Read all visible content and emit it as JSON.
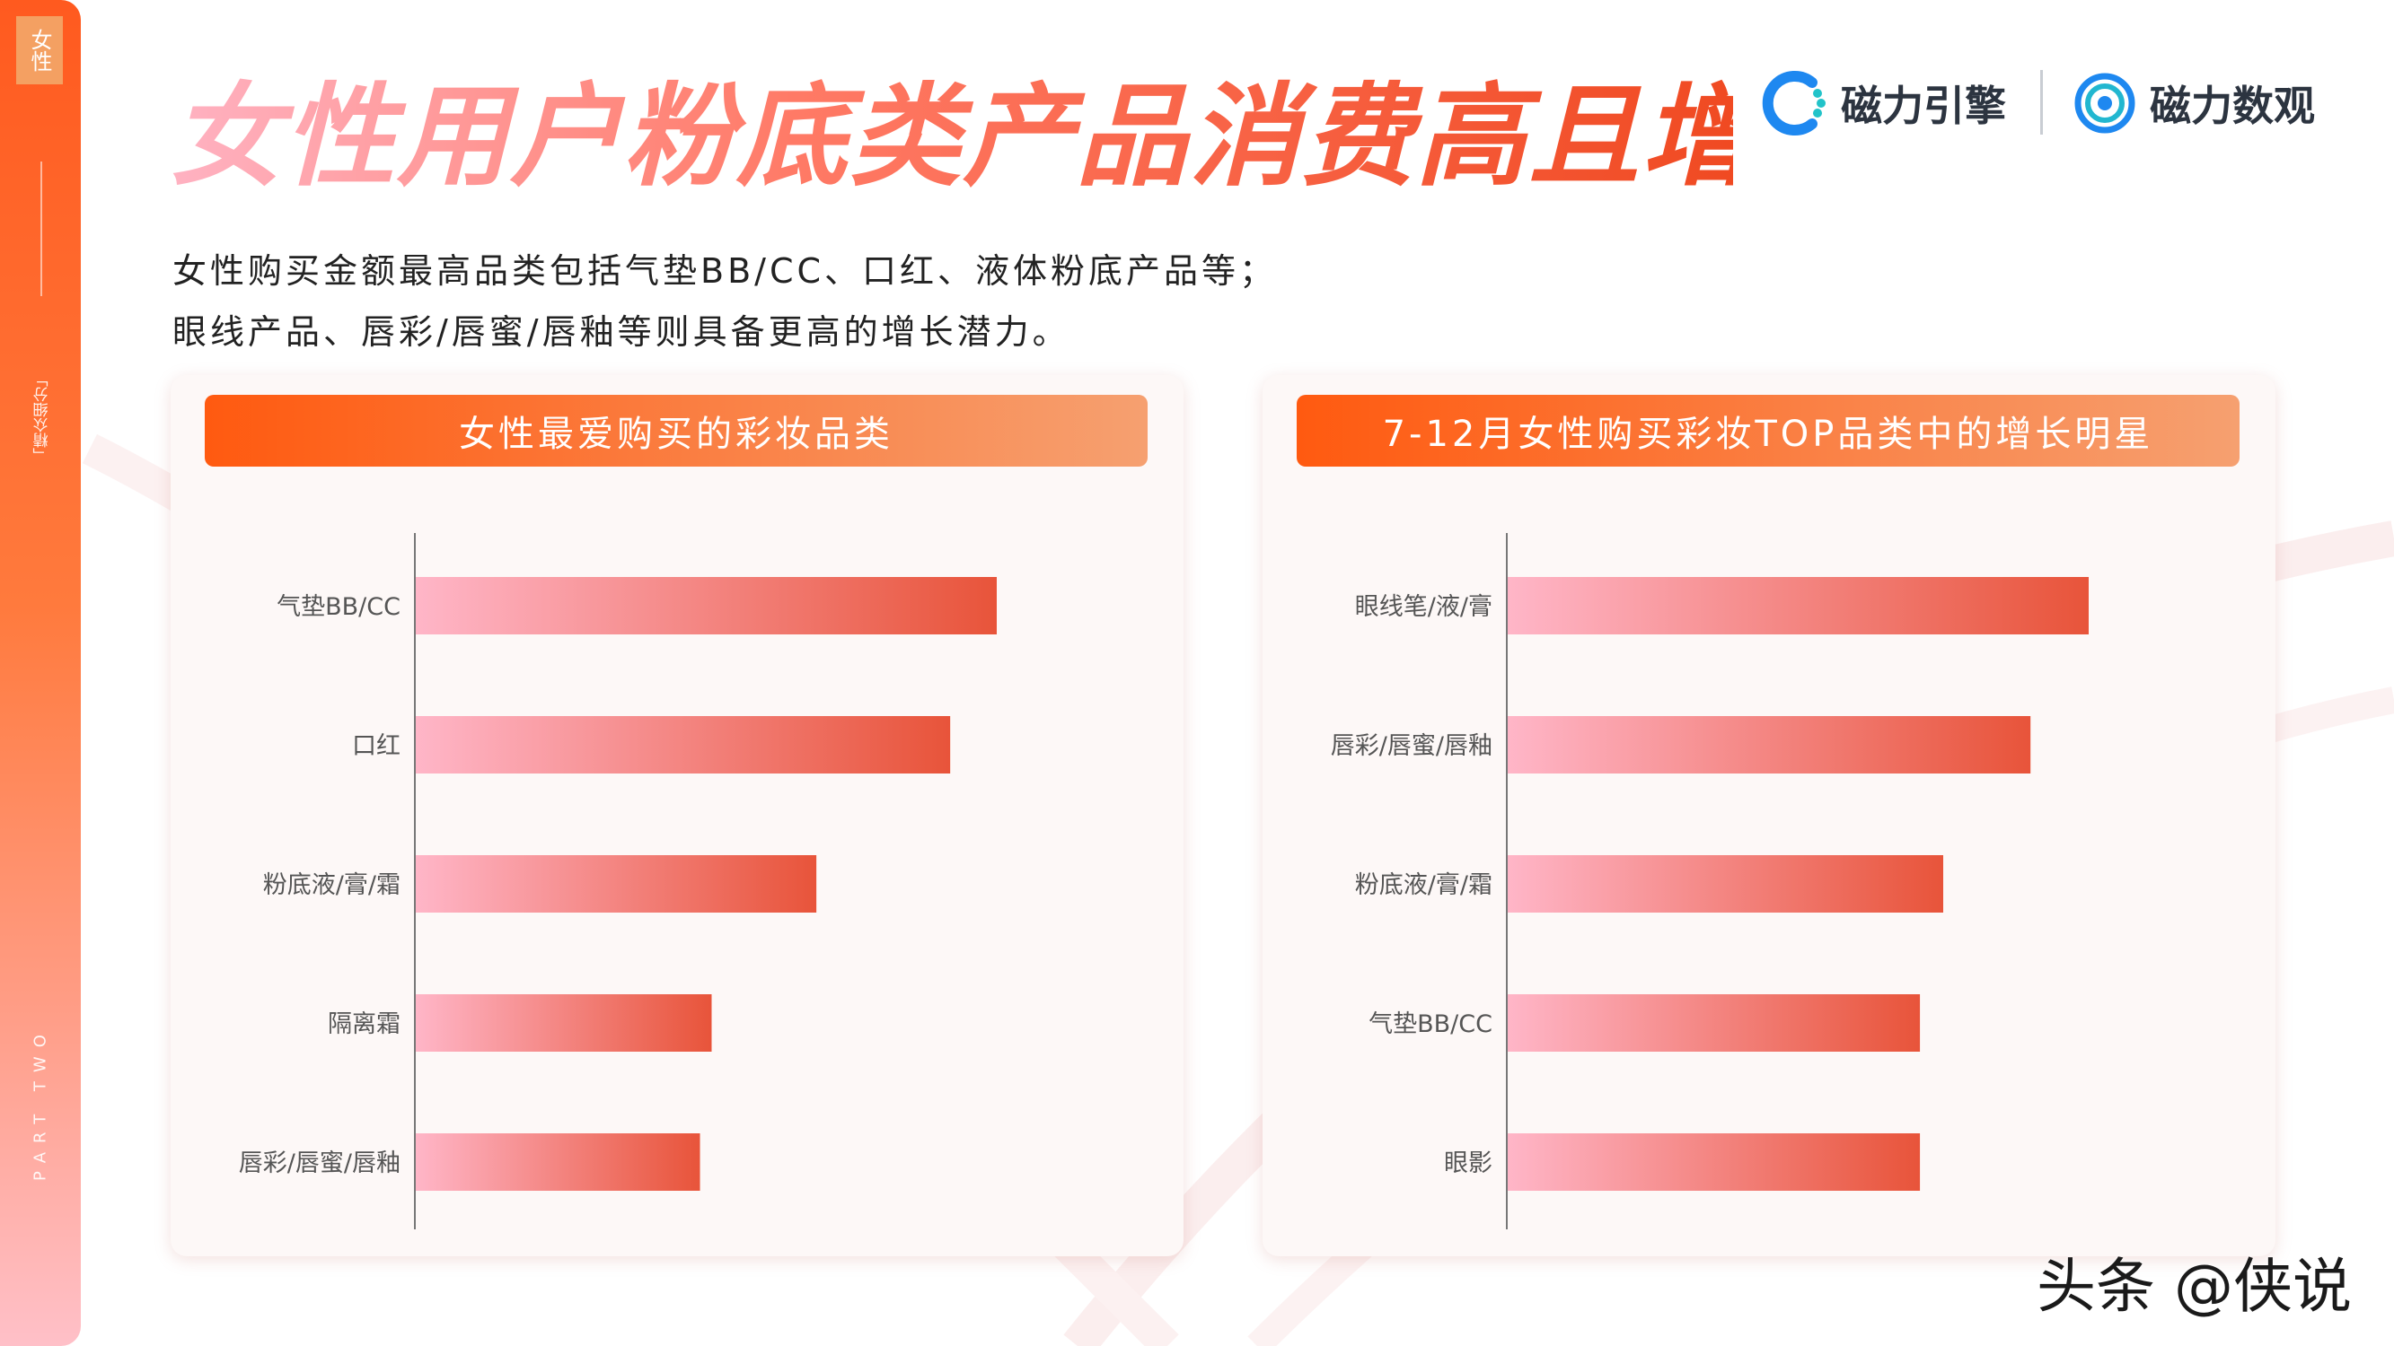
{
  "sidebar": {
    "tag": "女性",
    "section_label": "「精众细分」",
    "part_label": "PART TWO"
  },
  "header": {
    "title": "女性用户粉底类产品消费高且增速快",
    "logo_left": "磁力引擎",
    "logo_right": "磁力数观"
  },
  "subtitle": {
    "line1": "女性购买金额最高品类包括气垫BB/CC、口红、液体粉底产品等；",
    "line2": "眼线产品、唇彩/唇蜜/唇釉等则具备更高的增长潜力。"
  },
  "colors": {
    "accent": "#ff5a10",
    "bar_start": "#ffb6c8",
    "bar_end": "#e8543a"
  },
  "chart_data": [
    {
      "type": "bar",
      "orientation": "horizontal",
      "title": "女性最爱购买的彩妆品类",
      "categories": [
        "气垫BB/CC",
        "口红",
        "粉底液/膏/霜",
        "隔离霜",
        "唇彩/唇蜜/唇釉"
      ],
      "values": [
        100,
        92,
        69,
        51,
        49
      ],
      "xlim": [
        0,
        100
      ]
    },
    {
      "type": "bar",
      "orientation": "horizontal",
      "title": "7-12月女性购买彩妆TOP品类中的增长明星",
      "categories": [
        "眼线笔/液/膏",
        "唇彩/唇蜜/唇釉",
        "粉底液/膏/霜",
        "气垫BB/CC",
        "眼影"
      ],
      "values": [
        100,
        90,
        75,
        71,
        71
      ],
      "xlim": [
        0,
        100
      ]
    }
  ],
  "watermark": "头条 @侠说"
}
